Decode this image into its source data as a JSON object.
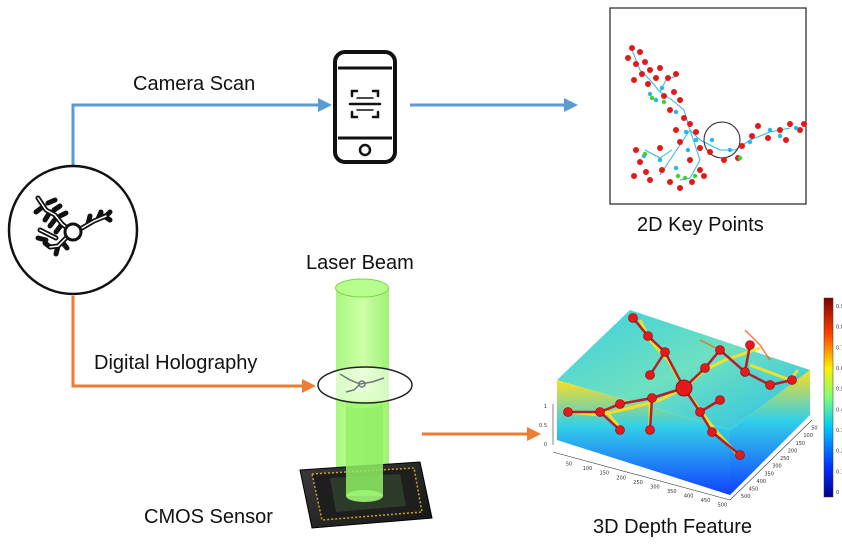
{
  "labels": {
    "camera_scan": "Camera Scan",
    "digital_holography": "Digital Holography",
    "laser_beam": "Laser Beam",
    "cmos_sensor": "CMOS Sensor",
    "key_points_2d": "2D Key Points",
    "depth_feature_3d": "3D Depth Feature"
  },
  "colors": {
    "camera_arrow": "#5b9bd5",
    "holography_arrow": "#ed7d31",
    "laser_green": "#7cfc3c",
    "keypoint_red": "#e01a1a",
    "keypoint_cyan": "#29b6e8",
    "keypoint_green": "#39d42e"
  },
  "icons": {
    "sample": "fractal-sample-icon",
    "phone": "phone-scan-icon"
  },
  "depth_plot": {
    "colorbar_ticks": [
      "0.9",
      "0.8",
      "0.7",
      "0.6",
      "0.5",
      "0.4",
      "0.3",
      "0.2",
      "0.1",
      "0"
    ],
    "z_ticks": [
      "1",
      "0.5",
      "0"
    ],
    "x_ticks": [
      "50",
      "100",
      "150",
      "200",
      "250",
      "300",
      "350",
      "400",
      "450",
      "500"
    ],
    "y_ticks": [
      "50",
      "100",
      "150",
      "200",
      "250",
      "300",
      "350",
      "400",
      "450",
      "500"
    ]
  }
}
